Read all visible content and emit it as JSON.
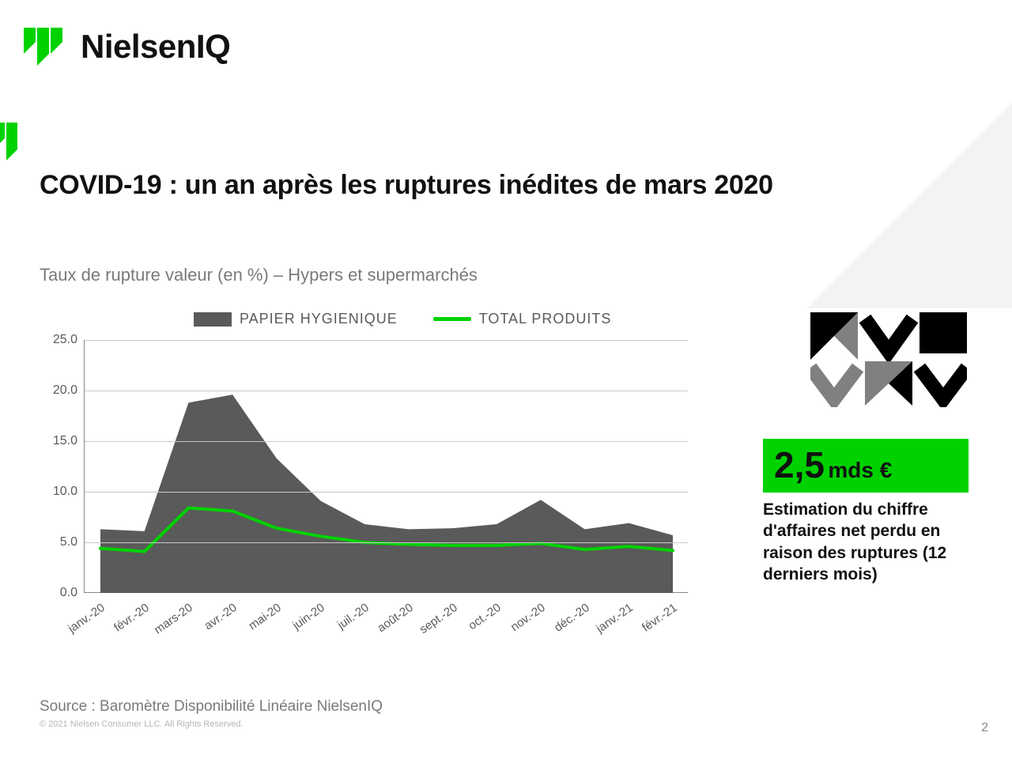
{
  "brand": {
    "name": "NielsenIQ",
    "accent_color": "#00d200"
  },
  "title": "COVID-19 : un an après les ruptures inédites de mars 2020",
  "subtitle": "Taux de rupture valeur (en %)  – Hypers et supermarchés",
  "chart": {
    "type": "area+line",
    "background_color": "#ffffff",
    "grid_color": "#c9c9c9",
    "axis_color": "#888888",
    "tick_fontsize": 16,
    "tick_color": "#5a5a5a",
    "ylim": [
      0,
      25
    ],
    "ytick_step": 5,
    "yticks": [
      "0.0",
      "5.0",
      "10.0",
      "15.0",
      "20.0",
      "25.0"
    ],
    "x_labels": [
      "janv.-20",
      "févr.-20",
      "mars-20",
      "avr.-20",
      "mai-20",
      "juin-20",
      "juil.-20",
      "août-20",
      "sept.-20",
      "oct.-20",
      "nov.-20",
      "déc.-20",
      "janv.-21",
      "févr.-21"
    ],
    "x_label_rotation_deg": -35,
    "series": [
      {
        "name": "PAPIER HYGIENIQUE",
        "style": "area",
        "fill_color": "#5a5a5a",
        "line_color": "#5a5a5a",
        "line_width": 0,
        "values": [
          6.3,
          6.1,
          18.8,
          19.6,
          13.3,
          9.1,
          6.8,
          6.3,
          6.4,
          6.8,
          9.2,
          6.3,
          6.9,
          5.7
        ]
      },
      {
        "name": "TOTAL PRODUITS",
        "style": "line",
        "line_color": "#00d200",
        "line_width": 4,
        "values": [
          4.4,
          4.1,
          8.4,
          8.1,
          6.4,
          5.6,
          5.0,
          4.8,
          4.7,
          4.7,
          4.9,
          4.3,
          4.6,
          4.2
        ]
      }
    ],
    "legend": {
      "items": [
        {
          "label": "PAPIER HYGIENIQUE",
          "swatch": "area",
          "color": "#5a5a5a"
        },
        {
          "label": "TOTAL PRODUITS",
          "swatch": "line",
          "color": "#00d200"
        }
      ],
      "fontsize": 18,
      "color": "#5a5a5a"
    }
  },
  "callout": {
    "highlight_bg": "#00d200",
    "number": "2,5",
    "unit": "mds €",
    "desc": "Estimation du chiffre d'affaires net perdu en raison des ruptures (12 derniers mois)",
    "number_fontsize": 46,
    "unit_fontsize": 28,
    "desc_fontsize": 21
  },
  "source": "Source  : Baromètre Disponibilité Linéaire NielsenIQ",
  "copyright": "© 2021 Nielsen Consumer LLC. All Rights Reserved.",
  "page_number": "2"
}
